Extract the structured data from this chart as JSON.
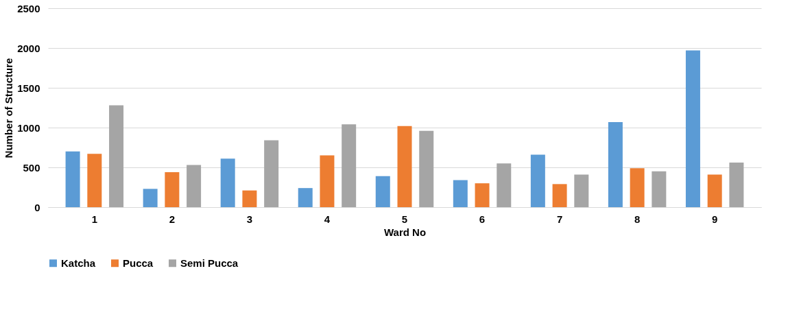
{
  "chart_data": {
    "type": "bar",
    "xlabel": "Ward No",
    "ylabel": "Number of Structure",
    "categories": [
      "1",
      "2",
      "3",
      "4",
      "5",
      "6",
      "7",
      "8",
      "9"
    ],
    "series": [
      {
        "name": "Katcha",
        "color": "#5b9bd5",
        "values": [
          700,
          230,
          610,
          240,
          390,
          340,
          660,
          1070,
          1970
        ]
      },
      {
        "name": "Pucca",
        "color": "#ed7d31",
        "values": [
          670,
          440,
          210,
          650,
          1020,
          300,
          290,
          490,
          410
        ]
      },
      {
        "name": "Semi Pucca",
        "color": "#a5a5a5",
        "values": [
          1280,
          530,
          840,
          1040,
          960,
          550,
          410,
          450,
          560
        ]
      }
    ],
    "ylim": [
      0,
      2500
    ],
    "yticks": [
      0,
      500,
      1000,
      1500,
      2000,
      2500
    ],
    "grid": "y",
    "legend": "bottom"
  }
}
